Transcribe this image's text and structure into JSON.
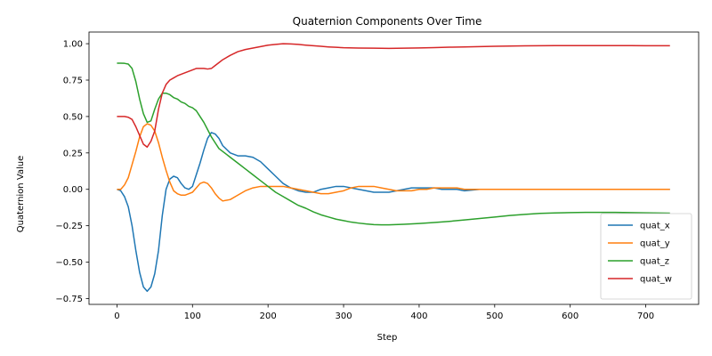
{
  "chart_data": {
    "type": "line",
    "title": "Quaternion Components Over Time",
    "xlabel": "Step",
    "ylabel": "Quaternion Value",
    "xlim": [
      -37,
      770
    ],
    "ylim": [
      -0.79,
      1.08
    ],
    "xticks": [
      0,
      100,
      200,
      300,
      400,
      500,
      600,
      700
    ],
    "yticks": [
      -0.75,
      -0.5,
      -0.25,
      0.0,
      0.25,
      0.5,
      0.75,
      1.0
    ],
    "ytick_labels": [
      "−0.75",
      "−0.50",
      "−0.25",
      "0.00",
      "0.25",
      "0.50",
      "0.75",
      "1.00"
    ],
    "legend_position": "lower right",
    "grid": false,
    "series": [
      {
        "name": "quat_x",
        "color": "#1f77b4",
        "points": [
          [
            0,
            0
          ],
          [
            5,
            -0.01
          ],
          [
            10,
            -0.05
          ],
          [
            15,
            -0.12
          ],
          [
            20,
            -0.25
          ],
          [
            25,
            -0.42
          ],
          [
            30,
            -0.57
          ],
          [
            35,
            -0.67
          ],
          [
            40,
            -0.7
          ],
          [
            45,
            -0.67
          ],
          [
            50,
            -0.58
          ],
          [
            55,
            -0.42
          ],
          [
            60,
            -0.18
          ],
          [
            65,
            0.0
          ],
          [
            70,
            0.07
          ],
          [
            75,
            0.09
          ],
          [
            80,
            0.08
          ],
          [
            85,
            0.04
          ],
          [
            90,
            0.01
          ],
          [
            95,
            0.0
          ],
          [
            100,
            0.02
          ],
          [
            105,
            0.1
          ],
          [
            110,
            0.18
          ],
          [
            115,
            0.27
          ],
          [
            120,
            0.35
          ],
          [
            125,
            0.39
          ],
          [
            130,
            0.38
          ],
          [
            135,
            0.35
          ],
          [
            140,
            0.3
          ],
          [
            150,
            0.25
          ],
          [
            160,
            0.23
          ],
          [
            170,
            0.23
          ],
          [
            180,
            0.22
          ],
          [
            190,
            0.19
          ],
          [
            200,
            0.14
          ],
          [
            210,
            0.09
          ],
          [
            220,
            0.04
          ],
          [
            230,
            0.01
          ],
          [
            240,
            -0.01
          ],
          [
            250,
            -0.02
          ],
          [
            260,
            -0.02
          ],
          [
            270,
            0.0
          ],
          [
            280,
            0.01
          ],
          [
            290,
            0.02
          ],
          [
            300,
            0.02
          ],
          [
            310,
            0.01
          ],
          [
            320,
            0.0
          ],
          [
            330,
            -0.01
          ],
          [
            340,
            -0.02
          ],
          [
            350,
            -0.02
          ],
          [
            360,
            -0.02
          ],
          [
            370,
            -0.01
          ],
          [
            380,
            0.0
          ],
          [
            390,
            0.01
          ],
          [
            400,
            0.01
          ],
          [
            410,
            0.01
          ],
          [
            420,
            0.01
          ],
          [
            430,
            0.0
          ],
          [
            440,
            0.0
          ],
          [
            450,
            0.0
          ],
          [
            460,
            -0.01
          ],
          [
            480,
            0.0
          ],
          [
            500,
            0.0
          ],
          [
            550,
            0.0
          ],
          [
            600,
            0.0
          ],
          [
            650,
            0.0
          ],
          [
            700,
            0.0
          ],
          [
            732,
            0.0
          ]
        ]
      },
      {
        "name": "quat_y",
        "color": "#ff7f0e",
        "points": [
          [
            0,
            0
          ],
          [
            5,
            0.0
          ],
          [
            10,
            0.03
          ],
          [
            15,
            0.08
          ],
          [
            20,
            0.17
          ],
          [
            25,
            0.26
          ],
          [
            30,
            0.36
          ],
          [
            35,
            0.43
          ],
          [
            40,
            0.45
          ],
          [
            45,
            0.44
          ],
          [
            50,
            0.4
          ],
          [
            55,
            0.32
          ],
          [
            60,
            0.22
          ],
          [
            65,
            0.13
          ],
          [
            70,
            0.05
          ],
          [
            75,
            -0.01
          ],
          [
            80,
            -0.03
          ],
          [
            85,
            -0.04
          ],
          [
            90,
            -0.04
          ],
          [
            95,
            -0.03
          ],
          [
            100,
            -0.02
          ],
          [
            105,
            0.01
          ],
          [
            110,
            0.04
          ],
          [
            115,
            0.05
          ],
          [
            120,
            0.04
          ],
          [
            125,
            0.01
          ],
          [
            130,
            -0.03
          ],
          [
            135,
            -0.06
          ],
          [
            140,
            -0.08
          ],
          [
            150,
            -0.07
          ],
          [
            160,
            -0.04
          ],
          [
            170,
            -0.01
          ],
          [
            180,
            0.01
          ],
          [
            190,
            0.02
          ],
          [
            200,
            0.02
          ],
          [
            210,
            0.02
          ],
          [
            220,
            0.02
          ],
          [
            230,
            0.01
          ],
          [
            240,
            0.0
          ],
          [
            250,
            -0.01
          ],
          [
            260,
            -0.02
          ],
          [
            270,
            -0.03
          ],
          [
            280,
            -0.03
          ],
          [
            290,
            -0.02
          ],
          [
            300,
            -0.01
          ],
          [
            310,
            0.01
          ],
          [
            320,
            0.02
          ],
          [
            330,
            0.02
          ],
          [
            340,
            0.02
          ],
          [
            350,
            0.01
          ],
          [
            360,
            0.0
          ],
          [
            370,
            -0.01
          ],
          [
            380,
            -0.01
          ],
          [
            390,
            -0.01
          ],
          [
            400,
            0.0
          ],
          [
            410,
            0.0
          ],
          [
            420,
            0.01
          ],
          [
            430,
            0.01
          ],
          [
            440,
            0.01
          ],
          [
            450,
            0.01
          ],
          [
            460,
            0.0
          ],
          [
            480,
            0.0
          ],
          [
            500,
            0.0
          ],
          [
            550,
            0.0
          ],
          [
            600,
            0.0
          ],
          [
            650,
            0.0
          ],
          [
            700,
            0.0
          ],
          [
            732,
            0.0
          ]
        ]
      },
      {
        "name": "quat_z",
        "color": "#2ca02c",
        "points": [
          [
            0,
            0.866
          ],
          [
            5,
            0.866
          ],
          [
            10,
            0.865
          ],
          [
            15,
            0.86
          ],
          [
            20,
            0.83
          ],
          [
            25,
            0.74
          ],
          [
            30,
            0.62
          ],
          [
            35,
            0.52
          ],
          [
            40,
            0.46
          ],
          [
            45,
            0.47
          ],
          [
            50,
            0.55
          ],
          [
            55,
            0.62
          ],
          [
            60,
            0.66
          ],
          [
            65,
            0.66
          ],
          [
            70,
            0.65
          ],
          [
            75,
            0.63
          ],
          [
            80,
            0.62
          ],
          [
            85,
            0.6
          ],
          [
            90,
            0.59
          ],
          [
            95,
            0.57
          ],
          [
            100,
            0.56
          ],
          [
            105,
            0.54
          ],
          [
            110,
            0.5
          ],
          [
            115,
            0.46
          ],
          [
            120,
            0.41
          ],
          [
            125,
            0.36
          ],
          [
            130,
            0.32
          ],
          [
            135,
            0.28
          ],
          [
            140,
            0.26
          ],
          [
            150,
            0.22
          ],
          [
            160,
            0.18
          ],
          [
            170,
            0.14
          ],
          [
            180,
            0.1
          ],
          [
            190,
            0.06
          ],
          [
            200,
            0.02
          ],
          [
            210,
            -0.02
          ],
          [
            220,
            -0.05
          ],
          [
            230,
            -0.08
          ],
          [
            240,
            -0.11
          ],
          [
            250,
            -0.13
          ],
          [
            260,
            -0.155
          ],
          [
            270,
            -0.175
          ],
          [
            280,
            -0.19
          ],
          [
            290,
            -0.205
          ],
          [
            300,
            -0.215
          ],
          [
            310,
            -0.225
          ],
          [
            320,
            -0.232
          ],
          [
            330,
            -0.238
          ],
          [
            340,
            -0.242
          ],
          [
            350,
            -0.244
          ],
          [
            360,
            -0.244
          ],
          [
            380,
            -0.24
          ],
          [
            400,
            -0.235
          ],
          [
            420,
            -0.228
          ],
          [
            440,
            -0.22
          ],
          [
            460,
            -0.21
          ],
          [
            480,
            -0.2
          ],
          [
            500,
            -0.19
          ],
          [
            520,
            -0.18
          ],
          [
            540,
            -0.172
          ],
          [
            560,
            -0.165
          ],
          [
            580,
            -0.162
          ],
          [
            600,
            -0.16
          ],
          [
            620,
            -0.158
          ],
          [
            640,
            -0.158
          ],
          [
            660,
            -0.158
          ],
          [
            680,
            -0.16
          ],
          [
            700,
            -0.161
          ],
          [
            732,
            -0.164
          ]
        ]
      },
      {
        "name": "quat_w",
        "color": "#d62728",
        "points": [
          [
            0,
            0.5
          ],
          [
            5,
            0.5
          ],
          [
            10,
            0.5
          ],
          [
            15,
            0.495
          ],
          [
            20,
            0.48
          ],
          [
            25,
            0.43
          ],
          [
            30,
            0.37
          ],
          [
            35,
            0.31
          ],
          [
            40,
            0.29
          ],
          [
            45,
            0.33
          ],
          [
            50,
            0.4
          ],
          [
            55,
            0.55
          ],
          [
            60,
            0.66
          ],
          [
            65,
            0.72
          ],
          [
            70,
            0.75
          ],
          [
            75,
            0.765
          ],
          [
            80,
            0.78
          ],
          [
            85,
            0.79
          ],
          [
            90,
            0.8
          ],
          [
            95,
            0.81
          ],
          [
            100,
            0.82
          ],
          [
            105,
            0.83
          ],
          [
            110,
            0.83
          ],
          [
            115,
            0.83
          ],
          [
            120,
            0.826
          ],
          [
            125,
            0.83
          ],
          [
            130,
            0.85
          ],
          [
            135,
            0.87
          ],
          [
            140,
            0.89
          ],
          [
            150,
            0.92
          ],
          [
            160,
            0.945
          ],
          [
            170,
            0.96
          ],
          [
            180,
            0.97
          ],
          [
            190,
            0.98
          ],
          [
            200,
            0.99
          ],
          [
            210,
            0.995
          ],
          [
            220,
            1.0
          ],
          [
            230,
            0.998
          ],
          [
            240,
            0.995
          ],
          [
            250,
            0.99
          ],
          [
            260,
            0.986
          ],
          [
            270,
            0.982
          ],
          [
            280,
            0.978
          ],
          [
            290,
            0.975
          ],
          [
            300,
            0.972
          ],
          [
            320,
            0.97
          ],
          [
            340,
            0.969
          ],
          [
            360,
            0.968
          ],
          [
            380,
            0.969
          ],
          [
            400,
            0.971
          ],
          [
            420,
            0.973
          ],
          [
            440,
            0.976
          ],
          [
            460,
            0.978
          ],
          [
            480,
            0.98
          ],
          [
            500,
            0.982
          ],
          [
            520,
            0.984
          ],
          [
            540,
            0.985
          ],
          [
            560,
            0.986
          ],
          [
            580,
            0.987
          ],
          [
            600,
            0.987
          ],
          [
            620,
            0.987
          ],
          [
            640,
            0.987
          ],
          [
            660,
            0.987
          ],
          [
            680,
            0.987
          ],
          [
            700,
            0.986
          ],
          [
            732,
            0.986
          ]
        ]
      }
    ]
  }
}
